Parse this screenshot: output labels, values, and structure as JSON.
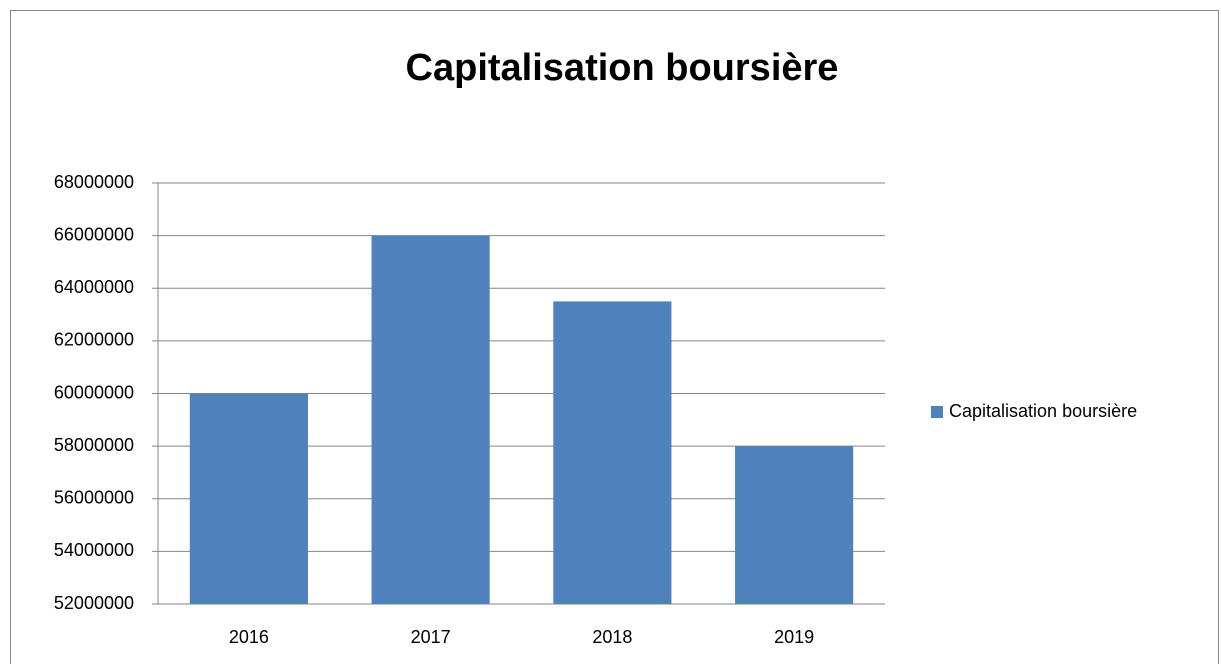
{
  "chart_data": {
    "type": "bar",
    "title": "Capitalisation boursière",
    "categories": [
      "2016",
      "2017",
      "2018",
      "2019"
    ],
    "series": [
      {
        "name": "Capitalisation boursière",
        "color": "#4f81bd",
        "values": [
          60000000,
          66000000,
          63500000,
          58000000
        ]
      }
    ],
    "ylim": [
      52000000,
      68000000
    ],
    "yticks": [
      52000000,
      54000000,
      56000000,
      58000000,
      60000000,
      62000000,
      64000000,
      66000000,
      68000000
    ],
    "grid": true,
    "legend": "right"
  }
}
